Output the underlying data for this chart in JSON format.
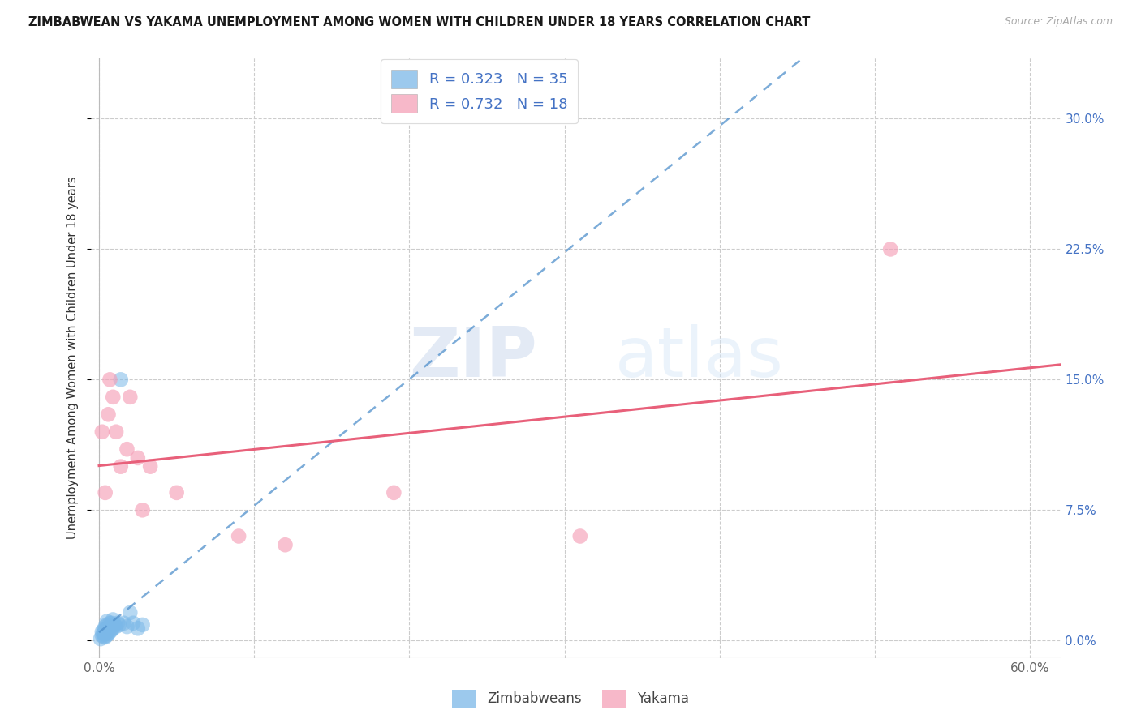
{
  "title": "ZIMBABWEAN VS YAKAMA UNEMPLOYMENT AMONG WOMEN WITH CHILDREN UNDER 18 YEARS CORRELATION CHART",
  "source": "Source: ZipAtlas.com",
  "ylabel": "Unemployment Among Women with Children Under 18 years",
  "xlim": [
    -0.005,
    0.62
  ],
  "ylim": [
    -0.01,
    0.335
  ],
  "xticks": [
    0.0,
    0.1,
    0.2,
    0.3,
    0.4,
    0.5,
    0.6
  ],
  "xtick_labels": [
    "0.0%",
    "",
    "",
    "",
    "",
    "",
    "60.0%"
  ],
  "yticks": [
    0.0,
    0.075,
    0.15,
    0.225,
    0.3
  ],
  "ytick_labels": [
    "0.0%",
    "7.5%",
    "15.0%",
    "22.5%",
    "30.0%"
  ],
  "legend_r1": "R = 0.323",
  "legend_n1": "N = 35",
  "legend_r2": "R = 0.732",
  "legend_n2": "N = 18",
  "blue_color": "#7bb8e8",
  "pink_color": "#f5a0b8",
  "blue_line_color": "#5090cc",
  "pink_line_color": "#e8607a",
  "blue_tick_color": "#4472c4",
  "watermark_zip_color": "#ccdaee",
  "watermark_atlas_color": "#d0e0f4",
  "zimbabwean_x": [
    0.001,
    0.002,
    0.002,
    0.003,
    0.003,
    0.003,
    0.004,
    0.004,
    0.004,
    0.004,
    0.005,
    0.005,
    0.005,
    0.005,
    0.005,
    0.006,
    0.006,
    0.007,
    0.007,
    0.007,
    0.008,
    0.008,
    0.009,
    0.009,
    0.01,
    0.011,
    0.012,
    0.013,
    0.014,
    0.016,
    0.018,
    0.02,
    0.022,
    0.025,
    0.028
  ],
  "zimbabwean_y": [
    0.001,
    0.003,
    0.005,
    0.002,
    0.004,
    0.006,
    0.002,
    0.004,
    0.006,
    0.008,
    0.003,
    0.005,
    0.007,
    0.009,
    0.011,
    0.004,
    0.007,
    0.005,
    0.008,
    0.01,
    0.006,
    0.01,
    0.007,
    0.012,
    0.009,
    0.008,
    0.01,
    0.009,
    0.15,
    0.01,
    0.008,
    0.016,
    0.01,
    0.007,
    0.009
  ],
  "yakama_x": [
    0.002,
    0.004,
    0.006,
    0.007,
    0.009,
    0.011,
    0.014,
    0.018,
    0.02,
    0.025,
    0.028,
    0.033,
    0.05,
    0.09,
    0.12,
    0.19,
    0.31,
    0.51
  ],
  "yakama_y": [
    0.12,
    0.085,
    0.13,
    0.15,
    0.14,
    0.12,
    0.1,
    0.11,
    0.14,
    0.105,
    0.075,
    0.1,
    0.085,
    0.06,
    0.055,
    0.085,
    0.06,
    0.225
  ]
}
